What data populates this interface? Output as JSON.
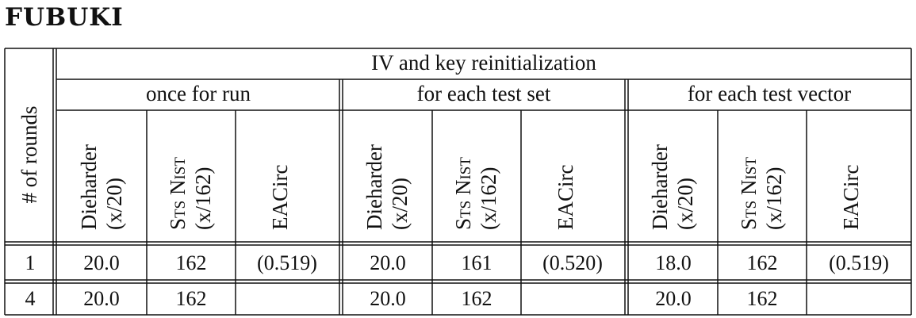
{
  "title": "FUBUKI",
  "rounds_header": "# of rounds",
  "group_header": "IV and key reinitialization",
  "subgroups": [
    "once for run",
    "for each test set",
    "for each test vector"
  ],
  "column_headers": {
    "diehard": {
      "line1": "Dieharder",
      "line2": "(x/20)"
    },
    "sts": {
      "line1_a": "S",
      "line1_b": "TS",
      "line1_c": " N",
      "line1_d": "IST",
      "line2": "(x/162)"
    },
    "eacirc": {
      "line1": "EACirc"
    }
  },
  "rows": [
    {
      "rounds": "1",
      "cells": [
        "20.0",
        "162",
        "(0.519)",
        "20.0",
        "161",
        "(0.520)",
        "18.0",
        "162",
        "(0.519)"
      ]
    },
    {
      "rounds": "4",
      "cells": [
        "20.0",
        "162",
        "",
        "20.0",
        "162",
        "",
        "20.0",
        "162",
        ""
      ]
    }
  ]
}
